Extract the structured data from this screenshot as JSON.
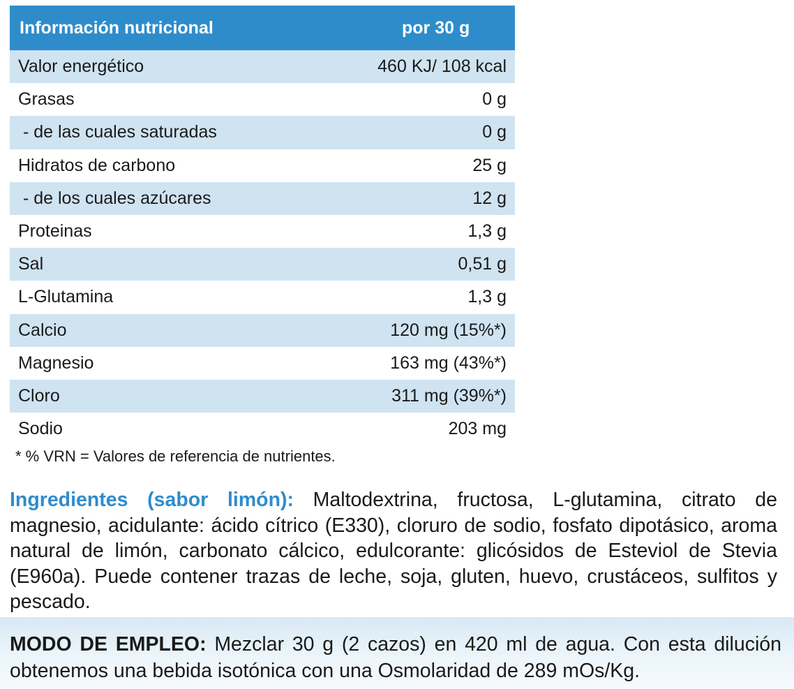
{
  "table": {
    "header": {
      "label": "Información nutricional",
      "value": "por 30 g"
    },
    "rows": [
      {
        "label": "Valor energético",
        "value": "460 KJ/ 108 kcal"
      },
      {
        "label": "Grasas",
        "value": "0 g"
      },
      {
        "label": " - de las cuales saturadas",
        "value": "0 g"
      },
      {
        "label": "Hidratos de carbono",
        "value": "25 g"
      },
      {
        "label": " - de los cuales azúcares",
        "value": "12 g"
      },
      {
        "label": "Proteinas",
        "value": "1,3 g"
      },
      {
        "label": "Sal",
        "value": "0,51 g"
      },
      {
        "label": "L-Glutamina",
        "value": "1,3 g"
      },
      {
        "label": "Calcio",
        "value": "120 mg (15%*)"
      },
      {
        "label": "Magnesio",
        "value": "163 mg (43%*)"
      },
      {
        "label": "Cloro",
        "value": "311 mg (39%*)"
      },
      {
        "label": "Sodio",
        "value": "203 mg"
      }
    ]
  },
  "footnote": "* % VRN = Valores de referencia de nutrientes.",
  "ingredients": {
    "lead": "Ingredientes (sabor limón):",
    "text": " Maltodextrina, fructosa, L-glutamina, citrato de magnesio, acidulante: ácido cítrico (E330), cloruro de sodio, fosfato dipotásico, aroma natural de limón, carbonato cálcico, edulcorante: glicósidos de Esteviol de Stevia (E960a). Puede contener trazas de leche, soja, gluten, huevo, crustáceos, sulfitos y pescado."
  },
  "usage": {
    "lead": "MODO DE EMPLEO:",
    "text": " Mezclar 30 g (2 cazos) en 420 ml de agua. Con esta dilución obtenemos una bebida isotónica con una Osmolaridad de 289 mOs/Kg."
  },
  "colors": {
    "header_bg": "#2f8ccb",
    "row_alt_bg": "#cfe3f1",
    "accent_text": "#2f8ccb"
  }
}
